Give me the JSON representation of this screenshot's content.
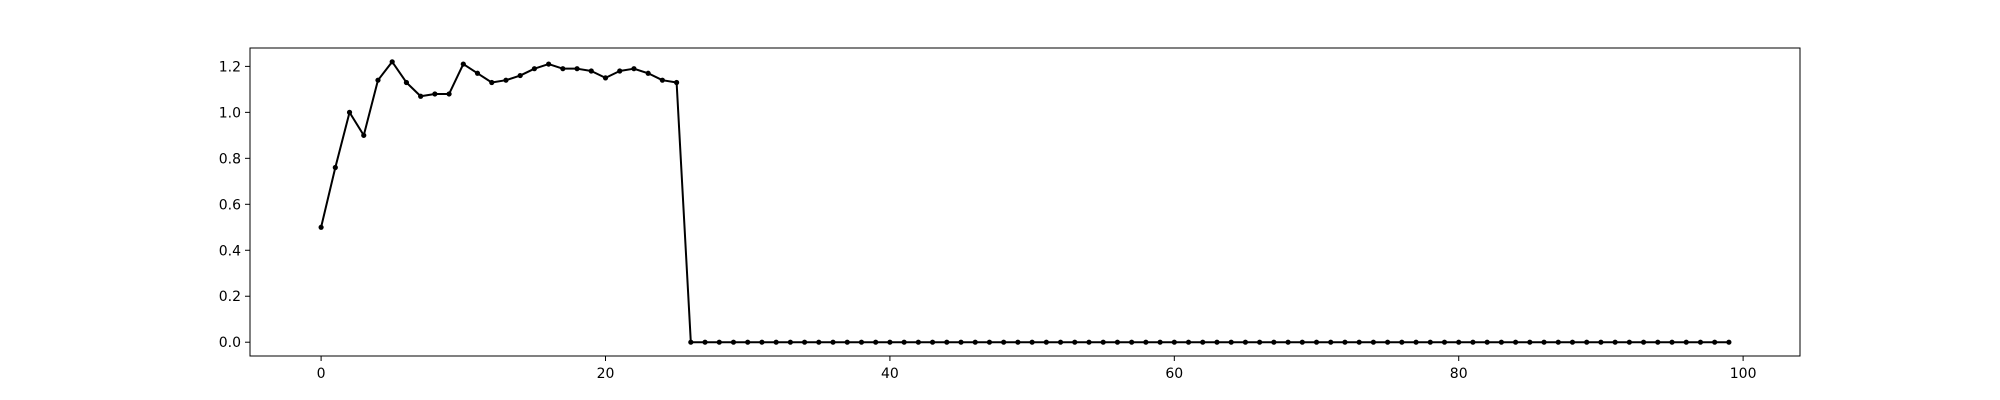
{
  "chart_data": {
    "type": "line",
    "title": "",
    "xlabel": "",
    "ylabel": "",
    "xlim": [
      -5,
      104
    ],
    "ylim": [
      -0.06,
      1.28
    ],
    "x_ticks": [
      0,
      20,
      40,
      60,
      80,
      100
    ],
    "y_ticks": [
      0.0,
      0.2,
      0.4,
      0.6,
      0.8,
      1.0,
      1.2
    ],
    "grid": false,
    "legend": "none",
    "series_color": "#000000",
    "series": [
      {
        "x": [
          0,
          1,
          2,
          3,
          4,
          5,
          6,
          7,
          8,
          9,
          10,
          11,
          12,
          13,
          14,
          15,
          16,
          17,
          18,
          19,
          20,
          21,
          22,
          23,
          24,
          25,
          26,
          27,
          28,
          29,
          30,
          31,
          32,
          33,
          34,
          35,
          36,
          37,
          38,
          39,
          40,
          41,
          42,
          43,
          44,
          45,
          46,
          47,
          48,
          49,
          50,
          51,
          52,
          53,
          54,
          55,
          56,
          57,
          58,
          59,
          60,
          61,
          62,
          63,
          64,
          65,
          66,
          67,
          68,
          69,
          70,
          71,
          72,
          73,
          74,
          75,
          76,
          77,
          78,
          79,
          80,
          81,
          82,
          83,
          84,
          85,
          86,
          87,
          88,
          89,
          90,
          91,
          92,
          93,
          94,
          95,
          96,
          97,
          98,
          99
        ],
        "values": [
          0.5,
          0.76,
          1.0,
          0.9,
          1.14,
          1.22,
          1.13,
          1.07,
          1.08,
          1.08,
          1.21,
          1.17,
          1.13,
          1.14,
          1.16,
          1.19,
          1.21,
          1.19,
          1.19,
          1.18,
          1.15,
          1.18,
          1.19,
          1.17,
          1.14,
          1.13,
          0,
          0,
          0,
          0,
          0,
          0,
          0,
          0,
          0,
          0,
          0,
          0,
          0,
          0,
          0,
          0,
          0,
          0,
          0,
          0,
          0,
          0,
          0,
          0,
          0,
          0,
          0,
          0,
          0,
          0,
          0,
          0,
          0,
          0,
          0,
          0,
          0,
          0,
          0,
          0,
          0,
          0,
          0,
          0,
          0,
          0,
          0,
          0,
          0,
          0,
          0,
          0,
          0,
          0,
          0,
          0,
          0,
          0,
          0,
          0,
          0,
          0,
          0,
          0,
          0,
          0,
          0,
          0,
          0,
          0,
          0,
          0,
          0,
          0
        ]
      }
    ]
  }
}
